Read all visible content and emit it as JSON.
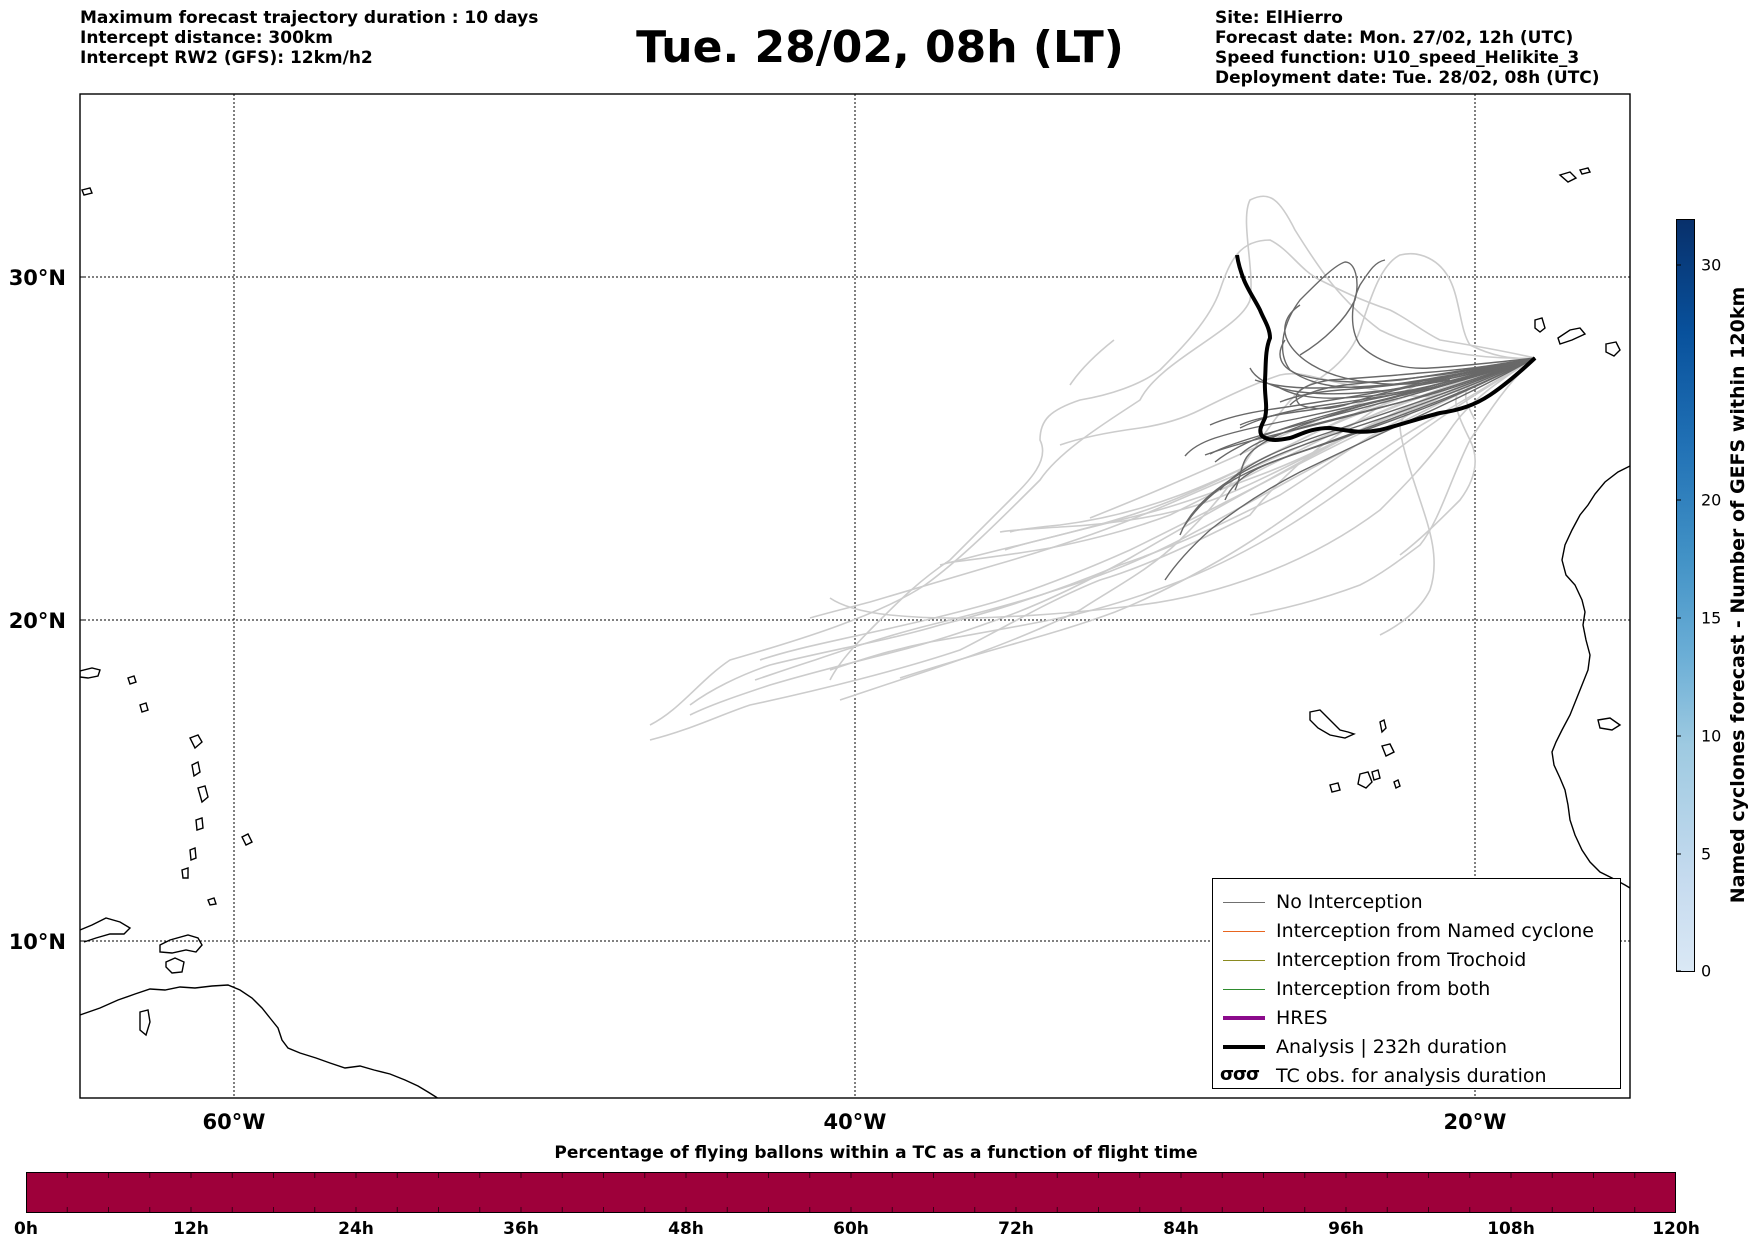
{
  "header": {
    "left_lines": [
      "Maximum forecast trajectory duration : 10 days",
      "Intercept distance: 300km",
      "Intercept RW2 (GFS):  12km/h2"
    ],
    "title": "Tue. 28/02, 08h (LT)",
    "right_lines": [
      "Site: ElHierro",
      "Forecast date: Mon. 27/02, 12h (UTC)",
      "Speed function: U10_speed_Helikite_3",
      "Deployment date: Tue. 28/02, 08h (UTC)"
    ]
  },
  "map": {
    "lat_labels": [
      "30°N",
      "20°N",
      "10°N"
    ],
    "lat_values": [
      30,
      20,
      10
    ],
    "lon_labels": [
      "60°W",
      "40°W",
      "20°W"
    ],
    "lon_values": [
      -60,
      -40,
      -20
    ],
    "lon_range": [
      -65,
      -15
    ],
    "lat_range": [
      5,
      34
    ]
  },
  "legend": {
    "items": [
      {
        "label": "No Interception",
        "color": "#707070",
        "width": 1.3
      },
      {
        "label": "Interception from Named cyclone",
        "color": "#e8651f",
        "width": 1.3
      },
      {
        "label": "Interception from Trochoid",
        "color": "#8a8a20",
        "width": 1.3
      },
      {
        "label": "Interception from both",
        "color": "#2e8b2e",
        "width": 1.3
      },
      {
        "label": "HRES",
        "color": "#8b0a8b",
        "width": 3.5
      },
      {
        "label": "Analysis | 232h duration",
        "color": "#000000",
        "width": 3.5
      }
    ],
    "tc_symbol": "σσσ",
    "tc_label": "TC obs. for analysis duration"
  },
  "colorbar": {
    "title": "Named cyclones forecast - Number of GEFS within 120km",
    "ticks": [
      "0",
      "5",
      "10",
      "15",
      "20",
      "30"
    ]
  },
  "timebar": {
    "caption": "Percentage of flying ballons within a TC as a function of flight time",
    "ticks": [
      "0h",
      "12h",
      "24h",
      "36h",
      "48h",
      "60h",
      "72h",
      "84h",
      "96h",
      "108h",
      "120h"
    ],
    "color": "#9e003a"
  }
}
